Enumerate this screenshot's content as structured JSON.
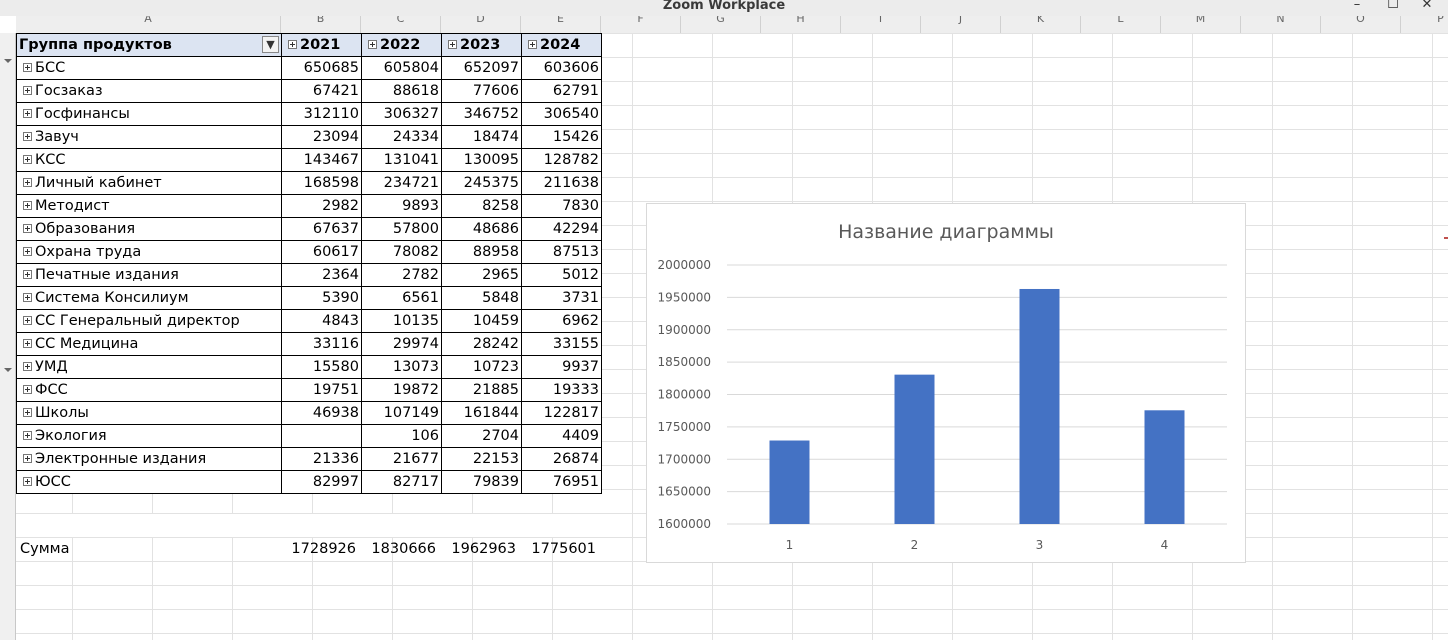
{
  "window": {
    "title": "Zoom Workplace",
    "minimize": "–",
    "maximize": "☐",
    "close": "✕"
  },
  "grid": {
    "column_letters": [
      "A",
      "B",
      "C",
      "D",
      "E",
      "F",
      "G",
      "H",
      "I",
      "J",
      "K",
      "L",
      "M",
      "N",
      "O",
      "P"
    ]
  },
  "pivot": {
    "header_label": "Группа продуктов",
    "filter_icon": "filter-dropdown-icon",
    "years": [
      "2021",
      "2022",
      "2023",
      "2024"
    ],
    "rows": [
      {
        "name": "БСС",
        "values": [
          "650685",
          "605804",
          "652097",
          "603606"
        ]
      },
      {
        "name": "Госзаказ",
        "values": [
          "67421",
          "88618",
          "77606",
          "62791"
        ]
      },
      {
        "name": "Госфинансы",
        "values": [
          "312110",
          "306327",
          "346752",
          "306540"
        ]
      },
      {
        "name": "Завуч",
        "values": [
          "23094",
          "24334",
          "18474",
          "15426"
        ]
      },
      {
        "name": "КСС",
        "values": [
          "143467",
          "131041",
          "130095",
          "128782"
        ]
      },
      {
        "name": "Личный кабинет",
        "values": [
          "168598",
          "234721",
          "245375",
          "211638"
        ]
      },
      {
        "name": "Методист",
        "values": [
          "2982",
          "9893",
          "8258",
          "7830"
        ]
      },
      {
        "name": "Образования",
        "values": [
          "67637",
          "57800",
          "48686",
          "42294"
        ]
      },
      {
        "name": "Охрана труда",
        "values": [
          "60617",
          "78082",
          "88958",
          "87513"
        ]
      },
      {
        "name": "Печатные издания",
        "values": [
          "2364",
          "2782",
          "2965",
          "5012"
        ]
      },
      {
        "name": "Система Консилиум",
        "values": [
          "5390",
          "6561",
          "5848",
          "3731"
        ]
      },
      {
        "name": "СС Генеральный директор",
        "values": [
          "4843",
          "10135",
          "10459",
          "6962"
        ]
      },
      {
        "name": "СС Медицина",
        "values": [
          "33116",
          "29974",
          "28242",
          "33155"
        ]
      },
      {
        "name": "УМД",
        "values": [
          "15580",
          "13073",
          "10723",
          "9937"
        ]
      },
      {
        "name": "ФСС",
        "values": [
          "19751",
          "19872",
          "21885",
          "19333"
        ]
      },
      {
        "name": "Школы",
        "values": [
          "46938",
          "107149",
          "161844",
          "122817"
        ]
      },
      {
        "name": "Экология",
        "values": [
          "",
          "106",
          "2704",
          "4409"
        ]
      },
      {
        "name": "Электронные издания",
        "values": [
          "21336",
          "21677",
          "22153",
          "26874"
        ]
      },
      {
        "name": "ЮСС",
        "values": [
          "82997",
          "82717",
          "79839",
          "76951"
        ]
      }
    ]
  },
  "summary": {
    "label": "Сумма",
    "values": [
      "1728926",
      "1830666",
      "1962963",
      "1775601"
    ]
  },
  "chart_data": {
    "type": "bar",
    "title": "Название диаграммы",
    "categories": [
      "1",
      "2",
      "3",
      "4"
    ],
    "values": [
      1728926,
      1830666,
      1962963,
      1775601
    ],
    "ylim": [
      1600000,
      2000000
    ],
    "yticks": [
      1600000,
      1650000,
      1700000,
      1750000,
      1800000,
      1850000,
      1900000,
      1950000,
      2000000
    ],
    "grid": true,
    "legend": "none",
    "bar_color": "#4472c4"
  },
  "colors": {
    "header_fill": "#dce4f2",
    "bar": "#4472c4",
    "gridline": "#d9d9d9"
  }
}
